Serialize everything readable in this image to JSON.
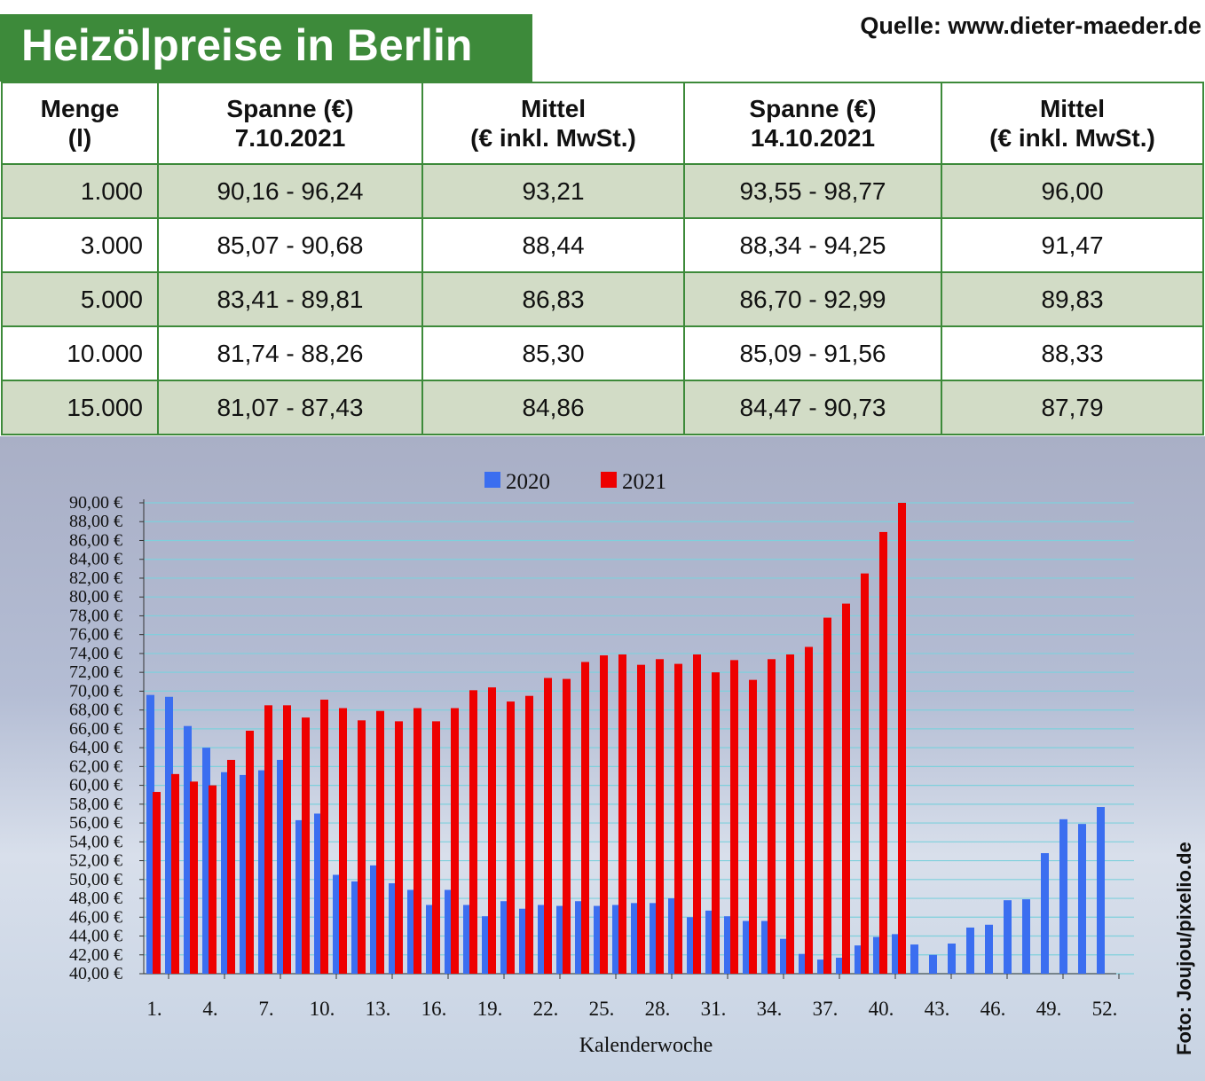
{
  "title": "Heizölpreise in Berlin",
  "source": "Quelle: www.dieter-maeder.de",
  "photo_credit": "Foto: Joujou/pixelio.de",
  "table": {
    "headers": [
      [
        "Menge",
        "(l)"
      ],
      [
        "Spanne (€)",
        "7.10.2021"
      ],
      [
        "Mittel",
        "(€ inkl. MwSt.)"
      ],
      [
        "Spanne (€)",
        "14.10.2021"
      ],
      [
        "Mittel",
        "(€ inkl. MwSt.)"
      ]
    ],
    "rows": [
      [
        "1.000",
        "90,16 - 96,24",
        "93,21",
        "93,55 - 98,77",
        "96,00"
      ],
      [
        "3.000",
        "85,07 - 90,68",
        "88,44",
        "88,34 - 94,25",
        "91,47"
      ],
      [
        "5.000",
        "83,41 - 89,81",
        "86,83",
        "86,70 - 92,99",
        "89,83"
      ],
      [
        "10.000",
        "81,74 - 88,26",
        "85,30",
        "85,09 - 91,56",
        "88,33"
      ],
      [
        "15.000",
        "81,07 - 87,43",
        "84,86",
        "84,47 - 90,73",
        "87,79"
      ]
    ]
  },
  "chart_data": {
    "type": "bar",
    "xlabel": "Kalenderwoche",
    "ylabel": "",
    "ylim": [
      40,
      90
    ],
    "yticks": [
      "40,00 €",
      "42,00 €",
      "44,00 €",
      "46,00 €",
      "48,00 €",
      "50,00 €",
      "52,00 €",
      "54,00 €",
      "56,00 €",
      "58,00 €",
      "60,00 €",
      "62,00 €",
      "64,00 €",
      "66,00 €",
      "68,00 €",
      "70,00 €",
      "72,00 €",
      "74,00 €",
      "76,00 €",
      "78,00 €",
      "80,00 €",
      "82,00 €",
      "84,00 €",
      "86,00 €",
      "88,00 €",
      "90,00 €"
    ],
    "xticks": [
      "1.",
      "4.",
      "7.",
      "10.",
      "13.",
      "16.",
      "19.",
      "22.",
      "25.",
      "28.",
      "31.",
      "34.",
      "37.",
      "40.",
      "43.",
      "46.",
      "49.",
      "52."
    ],
    "grid": true,
    "legend": "top",
    "series": [
      {
        "name": "2020",
        "color": "#3b6ef0",
        "values": [
          69.6,
          69.4,
          66.3,
          64.0,
          61.4,
          61.1,
          61.6,
          62.7,
          56.3,
          57.0,
          50.5,
          49.8,
          51.5,
          49.6,
          48.9,
          47.3,
          48.9,
          47.3,
          46.1,
          47.7,
          46.9,
          47.3,
          47.2,
          47.7,
          47.2,
          47.3,
          47.5,
          47.5,
          48.0,
          46.0,
          46.7,
          46.1,
          45.6,
          45.6,
          43.7,
          42.1,
          41.5,
          41.7,
          43.0,
          43.9,
          44.2,
          43.1,
          42.0,
          43.2,
          44.9,
          45.2,
          47.8,
          47.9,
          52.8,
          56.4,
          55.9,
          57.7
        ]
      },
      {
        "name": "2021",
        "color": "#ee0000",
        "values": [
          59.3,
          61.2,
          60.4,
          60.0,
          62.7,
          65.8,
          68.5,
          68.5,
          67.2,
          69.1,
          68.2,
          66.9,
          67.9,
          66.8,
          68.2,
          66.8,
          68.2,
          70.1,
          70.4,
          68.9,
          69.5,
          71.4,
          71.3,
          73.1,
          73.8,
          73.9,
          72.8,
          73.4,
          72.9,
          73.9,
          72.0,
          73.3,
          71.2,
          73.4,
          73.9,
          74.7,
          77.8,
          79.3,
          82.5,
          86.9,
          90.0
        ]
      }
    ]
  }
}
